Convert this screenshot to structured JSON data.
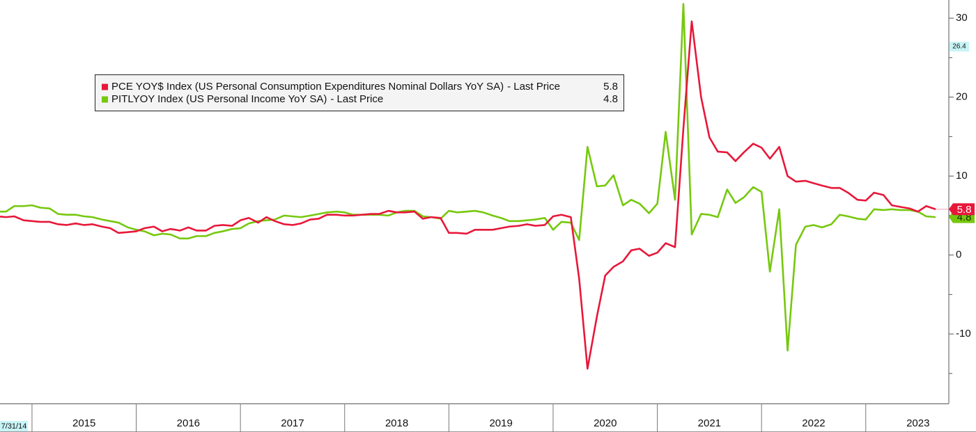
{
  "chart_data": {
    "type": "line",
    "start_label": "7/31/14",
    "annotation": 26.4,
    "legend_suffix": "- Last Price",
    "x": [
      2014.67,
      2014.75,
      2014.83,
      2014.92,
      2015.0,
      2015.08,
      2015.17,
      2015.25,
      2015.33,
      2015.42,
      2015.5,
      2015.58,
      2015.67,
      2015.75,
      2015.83,
      2015.92,
      2016.0,
      2016.08,
      2016.17,
      2016.25,
      2016.33,
      2016.42,
      2016.5,
      2016.58,
      2016.67,
      2016.75,
      2016.83,
      2016.92,
      2017.0,
      2017.08,
      2017.17,
      2017.25,
      2017.33,
      2017.42,
      2017.5,
      2017.58,
      2017.67,
      2017.75,
      2017.83,
      2017.92,
      2018.0,
      2018.08,
      2018.17,
      2018.25,
      2018.33,
      2018.42,
      2018.5,
      2018.58,
      2018.67,
      2018.75,
      2018.83,
      2018.92,
      2019.0,
      2019.08,
      2019.17,
      2019.25,
      2019.33,
      2019.42,
      2019.5,
      2019.58,
      2019.67,
      2019.75,
      2019.83,
      2019.92,
      2020.0,
      2020.08,
      2020.17,
      2020.25,
      2020.33,
      2020.42,
      2020.5,
      2020.58,
      2020.67,
      2020.75,
      2020.83,
      2020.92,
      2021.0,
      2021.08,
      2021.17,
      2021.25,
      2021.33,
      2021.42,
      2021.5,
      2021.58,
      2021.67,
      2021.75,
      2021.83,
      2021.92,
      2022.0,
      2022.08,
      2022.17,
      2022.25,
      2022.33,
      2022.42,
      2022.5,
      2022.58,
      2022.67,
      2022.75,
      2022.83,
      2022.92,
      2023.0,
      2023.08,
      2023.17,
      2023.25,
      2023.33,
      2023.42,
      2023.5,
      2023.58,
      2023.67
    ],
    "series": [
      {
        "name": "PCE YOY$ Index (US Personal Consumption Expenditures Nominal Dollars YoY SA)",
        "color": "#e8173a",
        "values": [
          4.9,
          4.8,
          4.9,
          4.4,
          4.3,
          4.2,
          4.2,
          3.9,
          3.8,
          4.0,
          3.8,
          3.9,
          3.6,
          3.4,
          2.8,
          2.9,
          3.0,
          3.4,
          3.6,
          3.0,
          3.3,
          3.1,
          3.5,
          3.1,
          3.1,
          3.7,
          3.8,
          3.7,
          4.4,
          4.7,
          4.1,
          4.8,
          4.3,
          3.9,
          3.8,
          4.0,
          4.5,
          4.6,
          5.1,
          5.1,
          5.0,
          5.0,
          5.1,
          5.2,
          5.2,
          5.6,
          5.4,
          5.4,
          5.5,
          4.6,
          4.8,
          4.7,
          2.8,
          2.8,
          2.7,
          3.2,
          3.2,
          3.2,
          3.4,
          3.6,
          3.7,
          3.9,
          3.7,
          3.8,
          4.9,
          5.1,
          4.8,
          -3.0,
          -14.4,
          -7.8,
          -2.6,
          -1.5,
          -0.8,
          0.6,
          0.8,
          -0.1,
          0.3,
          1.5,
          1.0,
          16.0,
          29.6,
          20.0,
          14.9,
          13.1,
          13.0,
          11.9,
          13.0,
          14.1,
          13.6,
          12.2,
          13.7,
          10.0,
          9.3,
          9.4,
          9.1,
          8.8,
          8.5,
          8.5,
          7.9,
          7.0,
          6.9,
          7.9,
          7.6,
          6.3,
          6.1,
          5.9,
          5.5,
          6.2,
          5.8
        ]
      },
      {
        "name": "PITLYOY Index (US Personal Income YoY SA)",
        "color": "#76c80e",
        "values": [
          5.5,
          5.5,
          6.2,
          6.2,
          6.3,
          6.0,
          5.9,
          5.2,
          5.1,
          5.1,
          4.9,
          4.8,
          4.5,
          4.3,
          4.1,
          3.5,
          3.2,
          3.0,
          2.5,
          2.7,
          2.6,
          2.1,
          2.1,
          2.4,
          2.4,
          2.8,
          3.0,
          3.3,
          3.4,
          4.0,
          4.3,
          4.4,
          4.5,
          5.0,
          4.9,
          4.8,
          5.0,
          5.2,
          5.4,
          5.5,
          5.4,
          5.1,
          5.1,
          5.1,
          5.1,
          5.0,
          5.4,
          5.6,
          5.6,
          4.9,
          4.8,
          4.6,
          5.6,
          5.4,
          5.5,
          5.6,
          5.4,
          5.0,
          4.7,
          4.3,
          4.3,
          4.4,
          4.5,
          4.7,
          3.2,
          4.2,
          4.1,
          1.9,
          13.7,
          8.7,
          8.8,
          10.1,
          6.3,
          7.0,
          6.5,
          5.3,
          6.5,
          15.6,
          7.0,
          31.8,
          2.6,
          5.2,
          5.1,
          4.8,
          8.3,
          6.6,
          7.3,
          8.6,
          8.0,
          -2.1,
          5.8,
          -12.1,
          1.3,
          3.6,
          3.8,
          3.5,
          3.9,
          5.1,
          4.9,
          4.6,
          4.5,
          5.8,
          5.7,
          5.8,
          5.7,
          5.7,
          5.5,
          4.9,
          4.8
        ]
      }
    ],
    "xlim": [
      2014.693,
      2023.797
    ],
    "xticks": [
      {
        "value": 2015,
        "label": "2015"
      },
      {
        "value": 2016,
        "label": "2016"
      },
      {
        "value": 2017,
        "label": "2017"
      },
      {
        "value": 2018,
        "label": "2018"
      },
      {
        "value": 2019,
        "label": "2019"
      },
      {
        "value": 2020,
        "label": "2020"
      },
      {
        "value": 2021,
        "label": "2021"
      },
      {
        "value": 2022,
        "label": "2022"
      },
      {
        "value": 2023,
        "label": "2023"
      }
    ],
    "ylim": [
      -18.8,
      32.3
    ],
    "yticks": [
      -10,
      0,
      10,
      20,
      30
    ],
    "yminorticks": [
      -15,
      -5,
      5,
      15,
      25
    ],
    "legend": "upper-left"
  }
}
